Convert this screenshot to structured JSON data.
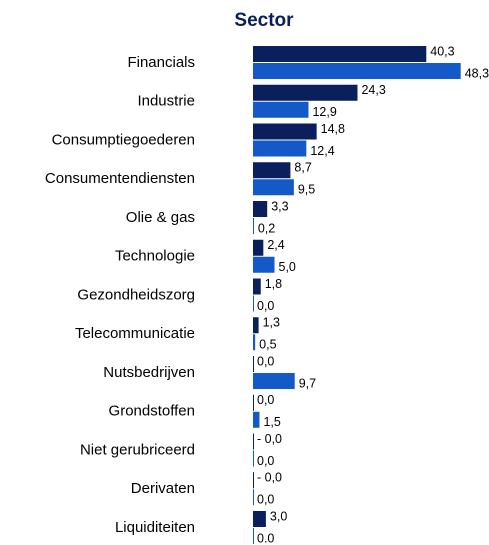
{
  "chart_data": {
    "type": "bar",
    "orientation": "horizontal",
    "title": "Sector",
    "categories": [
      "Financials",
      "Industrie",
      "Consumptiegoederen",
      "Consumentendiensten",
      "Olie & gas",
      "Technologie",
      "Gezondheidszorg",
      "Telecommunicatie",
      "Nutsbedrijven",
      "Grondstoffen",
      "Niet gerubriceerd",
      "Derivaten",
      "Liquiditeiten"
    ],
    "title_color": "#0a1f5c",
    "series": [
      {
        "color": "#0a1f5c",
        "values": [
          40.3,
          24.3,
          14.8,
          8.7,
          3.3,
          2.4,
          1.8,
          1.3,
          0,
          0,
          0,
          0,
          3.0
        ],
        "value_labels": [
          "40,3",
          "24,3",
          "14,8",
          "8,7",
          "3,3",
          "2,4",
          "1,8",
          "1,3",
          "0,0",
          "0,0",
          "- 0,0",
          "- 0,0",
          "3,0"
        ]
      },
      {
        "color": "#1459c8",
        "values": [
          48.3,
          12.9,
          12.4,
          9.5,
          0.2,
          5.0,
          0,
          0.5,
          9.7,
          1.5,
          0,
          0,
          0
        ],
        "value_labels": [
          "48,3",
          "12,9",
          "12,4",
          "9,5",
          "0,2",
          "5,0",
          "0,0",
          "0,5",
          "9,7",
          "1,5",
          "0,0",
          "0,0",
          "0.0"
        ]
      }
    ]
  }
}
